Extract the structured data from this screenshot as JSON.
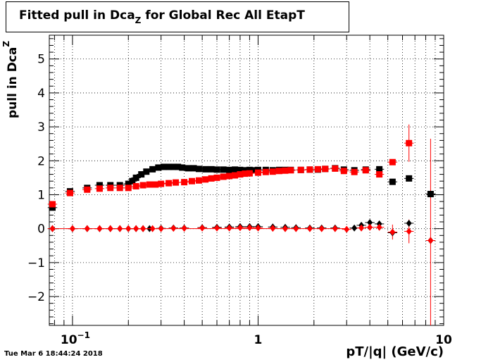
{
  "header": {
    "title_main": "Fitted pull in Dca",
    "title_sub": "Z",
    "title_tail": " for Global Rec All EtapT"
  },
  "footer": {
    "timestamp": "Tue Mar  6 18:44:24 2018"
  },
  "chart_data": {
    "type": "scatter",
    "xlabel": "pT/|q| (GeV/c)",
    "ylabel_main": "pull in Dca",
    "ylabel_sub": "Z",
    "x_scale": "log",
    "xlim": [
      0.075,
      10
    ],
    "ylim": [
      -2.85,
      5.7
    ],
    "x_ticks": [
      {
        "value": 0.1,
        "base": "10",
        "exp": "−1"
      },
      {
        "value": 1,
        "base": "1",
        "exp": ""
      },
      {
        "value": 10,
        "base": "10",
        "exp": ""
      }
    ],
    "y_ticks": [
      -2,
      -1,
      0,
      1,
      2,
      3,
      4,
      5
    ],
    "y_tick_labels": [
      "−2",
      "−1",
      "0",
      "1",
      "2",
      "3",
      "4",
      "5"
    ],
    "grid": true,
    "colors": {
      "black": "#000000",
      "red": "#ff0000"
    },
    "series": [
      {
        "marker": "square",
        "color": "#000000",
        "points": [
          [
            0.078,
            0.62
          ],
          [
            0.097,
            1.1
          ],
          [
            0.12,
            1.2
          ],
          [
            0.14,
            1.28
          ],
          [
            0.16,
            1.28
          ],
          [
            0.18,
            1.28
          ],
          [
            0.2,
            1.32
          ],
          [
            0.21,
            1.4
          ],
          [
            0.22,
            1.5
          ],
          [
            0.235,
            1.6
          ],
          [
            0.25,
            1.68
          ],
          [
            0.27,
            1.75
          ],
          [
            0.29,
            1.8
          ],
          [
            0.31,
            1.82
          ],
          [
            0.33,
            1.82
          ],
          [
            0.35,
            1.82
          ],
          [
            0.37,
            1.82
          ],
          [
            0.39,
            1.8
          ],
          [
            0.42,
            1.78
          ],
          [
            0.45,
            1.78
          ],
          [
            0.48,
            1.76
          ],
          [
            0.52,
            1.75
          ],
          [
            0.56,
            1.75
          ],
          [
            0.6,
            1.74
          ],
          [
            0.65,
            1.74
          ],
          [
            0.7,
            1.73
          ],
          [
            0.75,
            1.74
          ],
          [
            0.8,
            1.73
          ],
          [
            0.85,
            1.72
          ],
          [
            0.9,
            1.73
          ],
          [
            0.95,
            1.72
          ],
          [
            1.0,
            1.73
          ],
          [
            1.1,
            1.73
          ],
          [
            1.2,
            1.72
          ],
          [
            1.3,
            1.73
          ],
          [
            1.4,
            1.73
          ],
          [
            1.5,
            1.73
          ],
          [
            1.7,
            1.73
          ],
          [
            1.9,
            1.74
          ],
          [
            2.1,
            1.74
          ],
          [
            2.3,
            1.76
          ],
          [
            2.6,
            1.78
          ],
          [
            2.9,
            1.74
          ],
          [
            3.3,
            1.72
          ],
          [
            3.8,
            1.74
          ],
          [
            4.5,
            1.75
          ],
          [
            5.3,
            1.38
          ],
          [
            6.5,
            1.48
          ],
          [
            8.5,
            1.02
          ]
        ]
      },
      {
        "marker": "square",
        "color": "#ff0000",
        "points": [
          [
            0.078,
            0.72
          ],
          [
            0.097,
            1.05
          ],
          [
            0.12,
            1.15
          ],
          [
            0.14,
            1.18
          ],
          [
            0.16,
            1.2
          ],
          [
            0.18,
            1.2
          ],
          [
            0.2,
            1.2
          ],
          [
            0.22,
            1.25
          ],
          [
            0.24,
            1.28
          ],
          [
            0.26,
            1.3
          ],
          [
            0.28,
            1.3
          ],
          [
            0.3,
            1.32
          ],
          [
            0.33,
            1.34
          ],
          [
            0.36,
            1.36
          ],
          [
            0.4,
            1.37
          ],
          [
            0.44,
            1.4
          ],
          [
            0.48,
            1.42
          ],
          [
            0.52,
            1.45
          ],
          [
            0.56,
            1.48
          ],
          [
            0.6,
            1.5
          ],
          [
            0.65,
            1.53
          ],
          [
            0.7,
            1.55
          ],
          [
            0.75,
            1.57
          ],
          [
            0.8,
            1.6
          ],
          [
            0.85,
            1.62
          ],
          [
            0.9,
            1.63
          ],
          [
            1.0,
            1.65
          ],
          [
            1.1,
            1.67
          ],
          [
            1.2,
            1.68
          ],
          [
            1.3,
            1.7
          ],
          [
            1.4,
            1.71
          ],
          [
            1.5,
            1.72
          ],
          [
            1.7,
            1.73
          ],
          [
            1.9,
            1.74
          ],
          [
            2.1,
            1.75
          ],
          [
            2.3,
            1.76
          ],
          [
            2.6,
            1.77
          ],
          [
            2.9,
            1.7
          ],
          [
            3.3,
            1.67
          ],
          [
            3.8,
            1.72
          ],
          [
            4.5,
            1.6
          ],
          [
            5.3,
            1.96
          ],
          [
            6.5,
            2.52
          ]
        ]
      },
      {
        "marker": "diamond",
        "color": "#000000",
        "points": [
          [
            0.078,
            0.0
          ],
          [
            0.1,
            0.0
          ],
          [
            0.12,
            0.0
          ],
          [
            0.14,
            0.0
          ],
          [
            0.16,
            0.0
          ],
          [
            0.18,
            0.0
          ],
          [
            0.2,
            0.0
          ],
          [
            0.22,
            0.0
          ],
          [
            0.24,
            0.0
          ],
          [
            0.26,
            0.0
          ],
          [
            0.3,
            0.01
          ],
          [
            0.35,
            0.02
          ],
          [
            0.4,
            0.02
          ],
          [
            0.5,
            0.03
          ],
          [
            0.6,
            0.04
          ],
          [
            0.7,
            0.05
          ],
          [
            0.8,
            0.06
          ],
          [
            0.9,
            0.06
          ],
          [
            1.0,
            0.06
          ],
          [
            1.2,
            0.05
          ],
          [
            1.4,
            0.04
          ],
          [
            1.6,
            0.03
          ],
          [
            1.9,
            0.02
          ],
          [
            2.2,
            0.02
          ],
          [
            2.6,
            0.02
          ],
          [
            3.3,
            0.02
          ],
          [
            3.6,
            0.1
          ],
          [
            4.0,
            0.18
          ],
          [
            4.5,
            0.14
          ],
          [
            5.3,
            -0.12
          ],
          [
            6.5,
            0.16
          ],
          [
            8.5,
            -0.35
          ]
        ]
      },
      {
        "marker": "diamond",
        "color": "#ff0000",
        "points": [
          [
            0.078,
            0.0
          ],
          [
            0.1,
            0.0
          ],
          [
            0.12,
            0.0
          ],
          [
            0.14,
            0.0
          ],
          [
            0.16,
            0.0
          ],
          [
            0.18,
            0.0
          ],
          [
            0.2,
            0.0
          ],
          [
            0.22,
            0.0
          ],
          [
            0.24,
            0.0
          ],
          [
            0.27,
            0.0
          ],
          [
            0.3,
            0.0
          ],
          [
            0.35,
            0.01
          ],
          [
            0.4,
            0.01
          ],
          [
            0.5,
            0.02
          ],
          [
            0.6,
            0.02
          ],
          [
            0.7,
            0.02
          ],
          [
            0.8,
            0.03
          ],
          [
            0.9,
            0.03
          ],
          [
            1.0,
            0.02
          ],
          [
            1.2,
            0.01
          ],
          [
            1.4,
            0.0
          ],
          [
            1.6,
            0.0
          ],
          [
            1.9,
            0.0
          ],
          [
            2.2,
            0.0
          ],
          [
            2.6,
            0.0
          ],
          [
            3.0,
            -0.02
          ],
          [
            3.6,
            0.02
          ],
          [
            4.0,
            0.04
          ],
          [
            4.5,
            0.04
          ],
          [
            5.3,
            -0.1
          ],
          [
            6.5,
            -0.08
          ],
          [
            8.5,
            -0.35
          ]
        ]
      }
    ],
    "error_bars": [
      {
        "x": 5.3,
        "y": -0.1,
        "yerr": 0.22,
        "color": "#ff0000"
      },
      {
        "x": 6.5,
        "y": 2.52,
        "yerr": 0.55,
        "color": "#ff0000"
      },
      {
        "x": 6.5,
        "y": -0.08,
        "yerr": 0.35,
        "color": "#ff0000"
      },
      {
        "x": 8.5,
        "y": -0.35,
        "yerr": 3.0,
        "color": "#ff0000"
      },
      {
        "x": 8.5,
        "y": 1.02,
        "yerr": 0.1,
        "color": "#000000"
      }
    ]
  }
}
